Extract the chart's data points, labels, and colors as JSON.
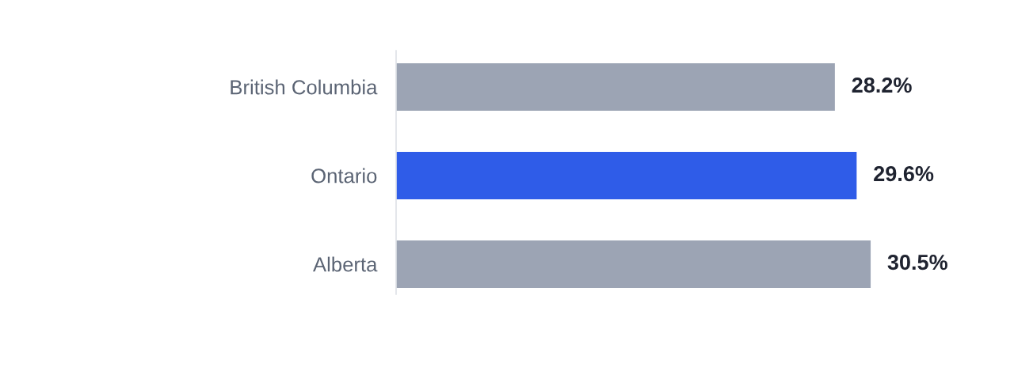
{
  "chart_data": {
    "type": "bar",
    "orientation": "horizontal",
    "categories": [
      "British Columbia",
      "Ontario",
      "Alberta"
    ],
    "values": [
      28.2,
      29.6,
      30.5
    ],
    "colors": [
      "#9ca4b4",
      "#2f5ce8",
      "#9ca4b4"
    ],
    "value_labels": [
      "28.2%",
      "29.6%",
      "30.5%"
    ],
    "tick_labels": "y"
  }
}
